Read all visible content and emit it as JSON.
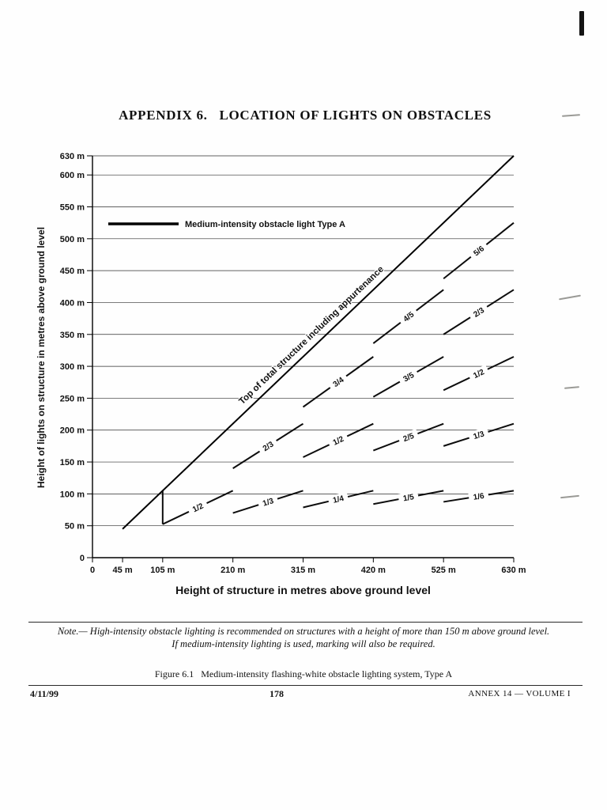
{
  "page": {
    "title": "APPENDIX 6.   LOCATION OF LIGHTS ON OBSTACLES",
    "note": {
      "line1": "Note.— High-intensity obstacle lighting is recommended on structures with a height of more than 150 m above ground level.",
      "line2": "If medium-intensity lighting is used, marking will also be required."
    },
    "figure_caption": "Figure 6.1   Medium-intensity flashing-white obstacle lighting system, Type A",
    "footer": {
      "date": "4/11/99",
      "page_number": "178",
      "document": "ANNEX 14 — VOLUME I"
    }
  },
  "chart_data": {
    "type": "line",
    "title": "Figure 6.1 Medium-intensity flashing-white obstacle lighting system, Type A",
    "xlabel": "Height of structure in metres above ground level",
    "ylabel": "Height of lights on structure in metres above ground level",
    "xlim": [
      0,
      630
    ],
    "ylim": [
      0,
      630
    ],
    "grid": true,
    "x_ticks": [
      {
        "v": 0,
        "label": "0"
      },
      {
        "v": 45,
        "label": "45 m"
      },
      {
        "v": 105,
        "label": "105 m"
      },
      {
        "v": 210,
        "label": "210 m"
      },
      {
        "v": 315,
        "label": "315 m"
      },
      {
        "v": 420,
        "label": "420 m"
      },
      {
        "v": 525,
        "label": "525 m"
      },
      {
        "v": 630,
        "label": "630 m"
      }
    ],
    "y_ticks": [
      {
        "v": 0,
        "label": "0"
      },
      {
        "v": 50,
        "label": "50 m"
      },
      {
        "v": 100,
        "label": "100 m"
      },
      {
        "v": 150,
        "label": "150 m"
      },
      {
        "v": 200,
        "label": "200 m"
      },
      {
        "v": 250,
        "label": "250 m"
      },
      {
        "v": 300,
        "label": "300 m"
      },
      {
        "v": 350,
        "label": "350 m"
      },
      {
        "v": 400,
        "label": "400 m"
      },
      {
        "v": 450,
        "label": "450 m"
      },
      {
        "v": 500,
        "label": "500 m"
      },
      {
        "v": 550,
        "label": "550 m"
      },
      {
        "v": 600,
        "label": "600 m"
      },
      {
        "v": 630,
        "label": "630 m"
      }
    ],
    "grid_y": [
      50,
      100,
      150,
      200,
      250,
      300,
      350,
      400,
      450,
      500,
      550,
      600,
      630
    ],
    "legend": {
      "label": "Medium-intensity obstacle light Type A"
    },
    "structure_line": {
      "label": "Top of total structure including appurtenance",
      "from": [
        45,
        45
      ],
      "to": [
        630,
        630
      ]
    },
    "light_segments": [
      {
        "from": [
          105,
          52.5
        ],
        "to": [
          105,
          105
        ],
        "label": ""
      },
      {
        "from": [
          105,
          52.5
        ],
        "to": [
          210,
          105
        ],
        "label": "1/2"
      },
      {
        "from": [
          210,
          70
        ],
        "to": [
          315,
          105
        ],
        "label": "1/3"
      },
      {
        "from": [
          210,
          140
        ],
        "to": [
          315,
          210
        ],
        "label": "2/3"
      },
      {
        "from": [
          315,
          78.75
        ],
        "to": [
          420,
          105
        ],
        "label": "1/4"
      },
      {
        "from": [
          315,
          157.5
        ],
        "to": [
          420,
          210
        ],
        "label": "1/2"
      },
      {
        "from": [
          315,
          236.25
        ],
        "to": [
          420,
          315
        ],
        "label": "3/4"
      },
      {
        "from": [
          420,
          84
        ],
        "to": [
          525,
          105
        ],
        "label": "1/5"
      },
      {
        "from": [
          420,
          168
        ],
        "to": [
          525,
          210
        ],
        "label": "2/5"
      },
      {
        "from": [
          420,
          252
        ],
        "to": [
          525,
          315
        ],
        "label": "3/5"
      },
      {
        "from": [
          420,
          336
        ],
        "to": [
          525,
          420
        ],
        "label": "4/5"
      },
      {
        "from": [
          525,
          87.5
        ],
        "to": [
          630,
          105
        ],
        "label": "1/6"
      },
      {
        "from": [
          525,
          175
        ],
        "to": [
          630,
          210
        ],
        "label": "1/3"
      },
      {
        "from": [
          525,
          262.5
        ],
        "to": [
          630,
          315
        ],
        "label": "1/2"
      },
      {
        "from": [
          525,
          350
        ],
        "to": [
          630,
          420
        ],
        "label": "2/3"
      },
      {
        "from": [
          525,
          437.5
        ],
        "to": [
          630,
          525
        ],
        "label": "5/6"
      }
    ]
  }
}
